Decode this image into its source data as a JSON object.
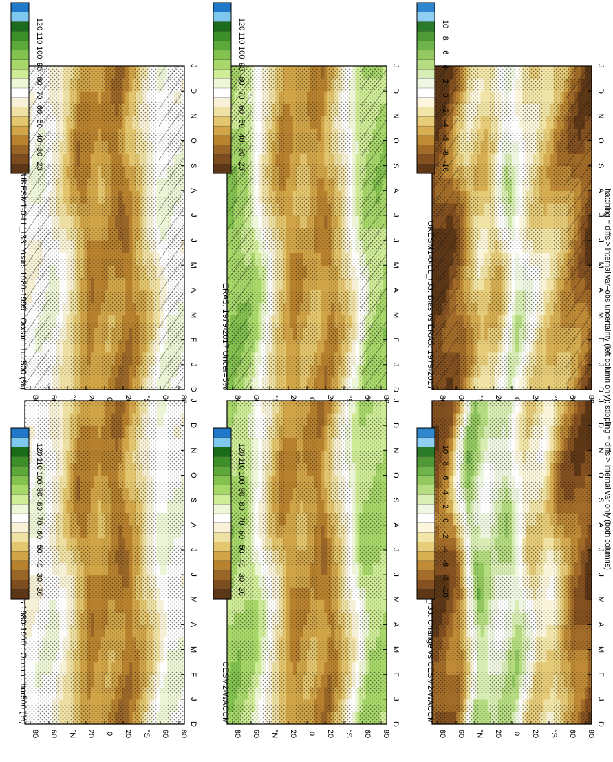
{
  "footnote": "hatching = diffs > internal var+obs uncertainty (left column only); stippling = diffs > internal var only (both columns)",
  "colors": {
    "abs_scale": [
      "#1f78c8",
      "#7ec8ee",
      "#1b6b1b",
      "#3d8f2a",
      "#5da83a",
      "#83c24f",
      "#a8d86a",
      "#cfec97",
      "#eef7d8",
      "#ffffff",
      "#f7f2d7",
      "#efe0a4",
      "#e4c66e",
      "#d2a648",
      "#b8822f",
      "#9a6628",
      "#7c4d1f",
      "#5c3717"
    ],
    "diff_scale": [
      "#2f87cf",
      "#8fd0f2",
      "#2a7a2a",
      "#4f9a36",
      "#6fb44a",
      "#93c960",
      "#b7dd82",
      "#d9ee b5",
      "#f0f8e4",
      "#ffffff",
      "#fbf6dc",
      "#f2e5a8",
      "#e7cc79",
      "#d7ae52",
      "#c08b36",
      "#a36c28",
      "#855120",
      "#5e3816"
    ]
  },
  "panels": [
    {
      "id": "left-top",
      "title": "UKESM1-0-LL_r33: Years 1980-1999 : Ocean : hur500 (%)",
      "colorbar_labels": [
        "120",
        "110",
        "100",
        "90",
        "80",
        "70",
        "60",
        "50",
        "40",
        "30",
        "20"
      ],
      "type": "abs"
    },
    {
      "id": "right-top",
      "title": "UKESM1-0-LL_r33: Years 1980-1999 : Ocean : hur500 (%)",
      "colorbar_labels": [
        "120",
        "110",
        "100",
        "90",
        "80",
        "70",
        "60",
        "50",
        "40",
        "30",
        "20"
      ],
      "type": "abs"
    },
    {
      "id": "left-mid",
      "title": "ERA5: 1979-2017 Uncer=5%",
      "colorbar_labels": [
        "120",
        "110",
        "100",
        "90",
        "80",
        "70",
        "60",
        "50",
        "40",
        "30",
        "20"
      ],
      "type": "abs"
    },
    {
      "id": "right-mid",
      "title": "CESM2-WACCM",
      "colorbar_labels": [
        "120",
        "110",
        "100",
        "90",
        "80",
        "70",
        "60",
        "50",
        "40",
        "30",
        "20"
      ],
      "type": "abs"
    },
    {
      "id": "left-bot",
      "title": "UKESM1-0-LL_r33: Bias vs ERA5: 1979-2017",
      "colorbar_labels": [
        "10",
        "8",
        "6",
        "4",
        "2",
        "0",
        "-2",
        "-4",
        "-6",
        "-8",
        "-10"
      ],
      "type": "diff"
    },
    {
      "id": "right-bot",
      "title": "UKESM1-0-LL_r33: Change vs CESM2-WACCM",
      "colorbar_labels": [
        "10",
        "8",
        "6",
        "4",
        "2",
        "0",
        "-2",
        "-4",
        "-6",
        "-8",
        "-10"
      ],
      "type": "diff"
    }
  ],
  "chart_data": [
    {
      "type": "heatmap",
      "title": "UKESM1-0-LL_r33: Years 1980-1999 : Ocean : hur500 (%)",
      "x": [
        "D",
        "J",
        "F",
        "M",
        "A",
        "M",
        "J",
        "J",
        "A",
        "S",
        "O",
        "N",
        "D",
        "J"
      ],
      "y_ticks": [
        "80",
        "60",
        "°N",
        "20",
        "0",
        "20",
        "°S",
        "60",
        "80"
      ],
      "latitude_profile": {
        "lat": [
          -80,
          -60,
          -40,
          -20,
          0,
          20,
          40,
          60,
          80
        ],
        "values": [
          70,
          72,
          52,
          35,
          45,
          38,
          58,
          72,
          68
        ]
      }
    },
    {
      "type": "heatmap",
      "title": "UKESM1-0-LL_r33: Years 1980-1999 : Ocean : hur500 (%)",
      "x": [
        "D",
        "J",
        "F",
        "M",
        "A",
        "M",
        "J",
        "J",
        "A",
        "S",
        "O",
        "N",
        "D",
        "J"
      ],
      "y_ticks": [
        "80",
        "60",
        "°N",
        "20",
        "0",
        "20",
        "°S",
        "60",
        "80"
      ],
      "latitude_profile": {
        "lat": [
          -80,
          -60,
          -40,
          -20,
          0,
          20,
          40,
          60,
          80
        ],
        "values": [
          70,
          72,
          52,
          35,
          45,
          38,
          58,
          72,
          68
        ]
      }
    },
    {
      "type": "heatmap",
      "title": "ERA5: 1979-2017 Uncer=5%",
      "x": [
        "D",
        "J",
        "F",
        "M",
        "A",
        "M",
        "J",
        "J",
        "A",
        "S",
        "O",
        "N",
        "D",
        "J"
      ],
      "y_ticks": [
        "80",
        "60",
        "°N",
        "20",
        "0",
        "20",
        "°S",
        "60",
        "80"
      ],
      "latitude_profile": {
        "lat": [
          -80,
          -60,
          -40,
          -20,
          0,
          20,
          40,
          60,
          80
        ],
        "values": [
          88,
          82,
          58,
          38,
          48,
          40,
          60,
          85,
          90
        ]
      }
    },
    {
      "type": "heatmap",
      "title": "CESM2-WACCM",
      "x": [
        "D",
        "J",
        "F",
        "M",
        "A",
        "M",
        "J",
        "J",
        "A",
        "S",
        "O",
        "N",
        "D",
        "J"
      ],
      "y_ticks": [
        "80",
        "60",
        "°N",
        "20",
        "0",
        "20",
        "°S",
        "60",
        "80"
      ],
      "latitude_profile": {
        "lat": [
          -80,
          -60,
          -40,
          -20,
          0,
          20,
          40,
          60,
          80
        ],
        "values": [
          86,
          84,
          60,
          36,
          46,
          40,
          62,
          84,
          88
        ]
      }
    },
    {
      "type": "heatmap",
      "title": "UKESM1-0-LL_r33: Bias vs ERA5: 1979-2017",
      "x": [
        "D",
        "J",
        "F",
        "M",
        "A",
        "M",
        "J",
        "J",
        "A",
        "S",
        "O",
        "N",
        "D",
        "J"
      ],
      "y_ticks": [
        "80",
        "60",
        "°N",
        "20",
        "0",
        "20",
        "°S",
        "60",
        "80"
      ],
      "latitude_profile": {
        "lat": [
          -80,
          -60,
          -40,
          -20,
          0,
          20,
          40,
          60,
          80
        ],
        "values": [
          -9,
          -6,
          -4,
          -2,
          2,
          -4,
          -3,
          -8,
          -10
        ]
      }
    },
    {
      "type": "heatmap",
      "title": "UKESM1-0-LL_r33: Change vs CESM2-WACCM",
      "x": [
        "D",
        "J",
        "F",
        "M",
        "A",
        "M",
        "J",
        "J",
        "A",
        "S",
        "O",
        "N",
        "D",
        "J"
      ],
      "y_ticks": [
        "80",
        "60",
        "°N",
        "20",
        "0",
        "20",
        "°S",
        "60",
        "80"
      ],
      "latitude_profile": {
        "lat": [
          -80,
          -60,
          -40,
          -20,
          0,
          20,
          40,
          60,
          80
        ],
        "values": [
          -9,
          -7,
          -2,
          -3,
          3,
          1,
          4,
          -7,
          -9
        ]
      }
    }
  ]
}
